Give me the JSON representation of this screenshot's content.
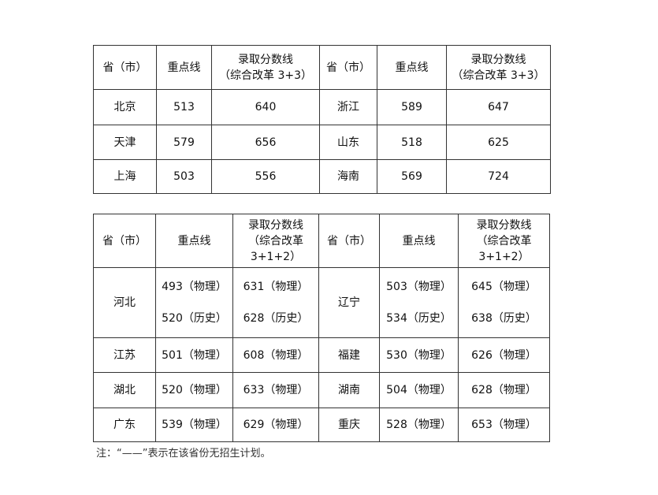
{
  "table1": {
    "headers": [
      "省（市）",
      "重点线",
      "录取分数线\n（综合改革 3+3）",
      "省（市）",
      "重点线",
      "录取分数线\n（综合改革 3+3）"
    ],
    "rows": [
      [
        "北京",
        "513",
        "640",
        "浙江",
        "589",
        "647"
      ],
      [
        "天津",
        "579",
        "656",
        "山东",
        "518",
        "625"
      ],
      [
        "上海",
        "503",
        "556",
        "海南",
        "569",
        "724"
      ]
    ]
  },
  "table2": {
    "headers": [
      "省（市）",
      "重点线",
      "录取分数线\n（综合改革\n3+1+2）",
      "省（市）",
      "重点线",
      "录取分数线\n（综合改革\n3+1+2）"
    ],
    "rows": [
      [
        "河北",
        "493（物理）\n\n520（历史）",
        "631（物理）\n\n628（历史）",
        "辽宁",
        "503（物理）\n\n534（历史）",
        "645（物理）\n\n638（历史）"
      ],
      [
        "江苏",
        "501（物理）",
        "608（物理）",
        "福建",
        "530（物理）",
        "626（物理）"
      ],
      [
        "湖北",
        "520（物理）",
        "633（物理）",
        "湖南",
        "504（物理）",
        "628（物理）"
      ],
      [
        "广东",
        "539（物理）",
        "629（物理）",
        "重庆",
        "528（物理）",
        "653（物理）"
      ]
    ]
  },
  "note": "注：“——”表示在该省份无招生计划。"
}
